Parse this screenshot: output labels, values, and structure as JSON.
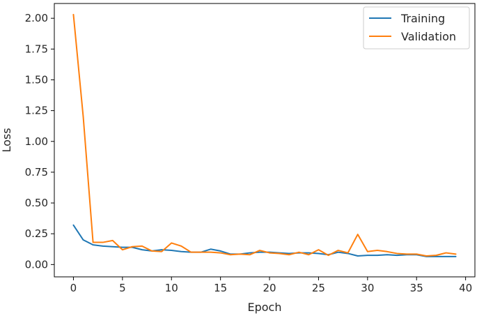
{
  "chart_data": {
    "type": "line",
    "title": "",
    "xlabel": "Epoch",
    "ylabel": "Loss",
    "xlim": [
      -1.95,
      40.95
    ],
    "ylim": [
      -0.1,
      2.12
    ],
    "xticks": [
      0,
      5,
      10,
      15,
      20,
      25,
      30,
      35,
      40
    ],
    "yticks": [
      0.0,
      0.25,
      0.5,
      0.75,
      1.0,
      1.25,
      1.5,
      1.75,
      2.0
    ],
    "ytick_labels": [
      "0.00",
      "0.25",
      "0.50",
      "0.75",
      "1.00",
      "1.25",
      "1.50",
      "1.75",
      "2.00"
    ],
    "grid": false,
    "legend_position": "top-right",
    "x": [
      0,
      1,
      2,
      3,
      4,
      5,
      6,
      7,
      8,
      9,
      10,
      11,
      12,
      13,
      14,
      15,
      16,
      17,
      18,
      19,
      20,
      21,
      22,
      23,
      24,
      25,
      26,
      27,
      28,
      29,
      30,
      31,
      32,
      33,
      34,
      35,
      36,
      37,
      38,
      39
    ],
    "series": [
      {
        "name": "Training",
        "color": "#1f77b4",
        "values": [
          0.32,
          0.2,
          0.16,
          0.15,
          0.145,
          0.14,
          0.14,
          0.12,
          0.11,
          0.12,
          0.115,
          0.105,
          0.1,
          0.1,
          0.125,
          0.11,
          0.085,
          0.085,
          0.095,
          0.1,
          0.1,
          0.095,
          0.09,
          0.095,
          0.095,
          0.09,
          0.08,
          0.1,
          0.09,
          0.07,
          0.075,
          0.075,
          0.08,
          0.075,
          0.08,
          0.08,
          0.065,
          0.065,
          0.065,
          0.065
        ]
      },
      {
        "name": "Validation",
        "color": "#ff7f0e",
        "values": [
          2.03,
          1.2,
          0.18,
          0.18,
          0.195,
          0.12,
          0.145,
          0.15,
          0.11,
          0.105,
          0.175,
          0.15,
          0.1,
          0.1,
          0.1,
          0.095,
          0.08,
          0.085,
          0.08,
          0.115,
          0.095,
          0.09,
          0.08,
          0.1,
          0.08,
          0.12,
          0.075,
          0.115,
          0.095,
          0.245,
          0.105,
          0.115,
          0.105,
          0.09,
          0.085,
          0.085,
          0.07,
          0.075,
          0.095,
          0.085
        ]
      }
    ]
  }
}
